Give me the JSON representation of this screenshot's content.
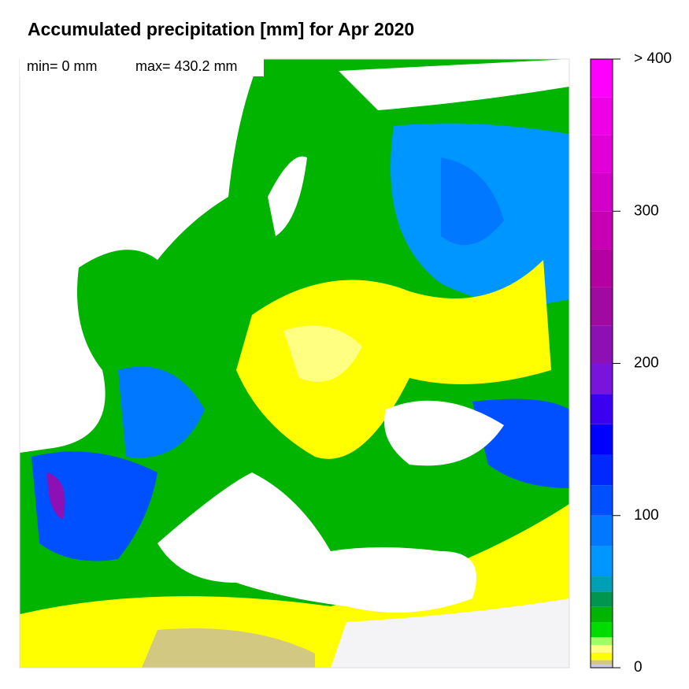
{
  "title": "Accumulated precipitation [mm] for Apr 2020",
  "stats": {
    "min": "min= 0 mm",
    "max": "max= 430.2 mm"
  },
  "colorbar": {
    "range": [
      0,
      400
    ],
    "ticks": [
      {
        "value": 400,
        "label": "> 400"
      },
      300,
      200,
      100,
      0
    ],
    "levels": [
      0,
      2,
      5,
      10,
      15,
      20,
      30,
      40,
      50,
      60,
      80,
      100,
      120,
      140,
      160,
      180,
      200,
      225,
      250,
      275,
      300,
      325,
      350,
      375,
      400
    ],
    "colors": [
      "#c8c8e6",
      "#d2c882",
      "#ffff00",
      "#ffff82",
      "#a0ff64",
      "#00dc00",
      "#00b400",
      "#009650",
      "#00a0b4",
      "#0096ff",
      "#0078ff",
      "#0050ff",
      "#0028ff",
      "#0000ff",
      "#3c00f0",
      "#7814dc",
      "#8c10b4",
      "#a00aa0",
      "#b400a0",
      "#c800b4",
      "#d200c8",
      "#e100d7",
      "#f000e6",
      "#ff00ff"
    ]
  }
}
